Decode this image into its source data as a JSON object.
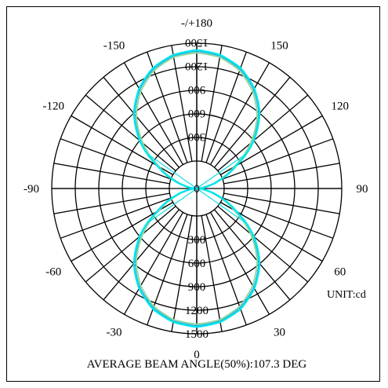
{
  "chart_data": {
    "type": "polar",
    "unit_label": "UNIT:cd",
    "caption": "AVERAGE BEAM ANGLE(50%):107.3 DEG",
    "angle_labels": [
      {
        "deg": 180,
        "text": "-/+180"
      },
      {
        "deg": 150,
        "text": "150"
      },
      {
        "deg": -150,
        "text": "-150"
      },
      {
        "deg": 120,
        "text": "120"
      },
      {
        "deg": -120,
        "text": "-120"
      },
      {
        "deg": 90,
        "text": "90"
      },
      {
        "deg": -90,
        "text": "-90"
      },
      {
        "deg": 60,
        "text": "60"
      },
      {
        "deg": -60,
        "text": "-60"
      },
      {
        "deg": 30,
        "text": "30"
      },
      {
        "deg": -30,
        "text": "-30"
      },
      {
        "deg": 0,
        "text": "0"
      }
    ],
    "radial_ticks": [
      0,
      300,
      600,
      900,
      1200,
      1500
    ],
    "rmax": 1500,
    "series": [
      {
        "color": "#1f9fe6",
        "angles_deg": [
          0,
          10,
          20,
          30,
          40,
          50,
          55,
          60,
          70,
          80,
          90
        ],
        "values": [
          1500,
          1470,
          1390,
          1250,
          1060,
          800,
          650,
          490,
          260,
          90,
          0
        ]
      },
      {
        "color": "#8fd8a0",
        "angles_deg": [
          0,
          10,
          20,
          30,
          40,
          50,
          55,
          60,
          70,
          80,
          90
        ],
        "values": [
          1480,
          1455,
          1370,
          1225,
          1030,
          770,
          625,
          470,
          245,
          85,
          0
        ]
      },
      {
        "color": "#00e5ee",
        "angles_deg": [
          0,
          10,
          20,
          30,
          40,
          50,
          55,
          60,
          70,
          80,
          90
        ],
        "values": [
          1510,
          1480,
          1400,
          1260,
          1070,
          815,
          665,
          500,
          270,
          95,
          0
        ]
      }
    ]
  }
}
